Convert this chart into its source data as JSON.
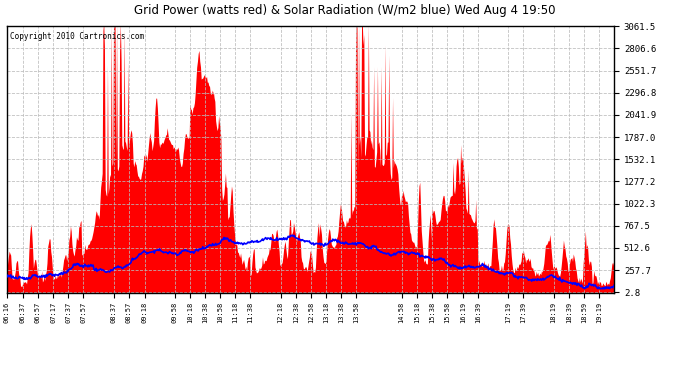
{
  "title": "Grid Power (watts red) & Solar Radiation (W/m2 blue) Wed Aug 4 19:50",
  "copyright": "Copyright 2010 Cartronics.com",
  "yticks": [
    2.8,
    257.7,
    512.6,
    767.5,
    1022.3,
    1277.2,
    1532.1,
    1787.0,
    2041.9,
    2296.8,
    2551.7,
    2806.6,
    3061.5
  ],
  "ylim": [
    0,
    3061.5
  ],
  "background_color": "#ffffff",
  "plot_bg_color": "#ffffff",
  "red_color": "#ff0000",
  "blue_color": "#0000ff",
  "grid_color": "#bbbbbb"
}
